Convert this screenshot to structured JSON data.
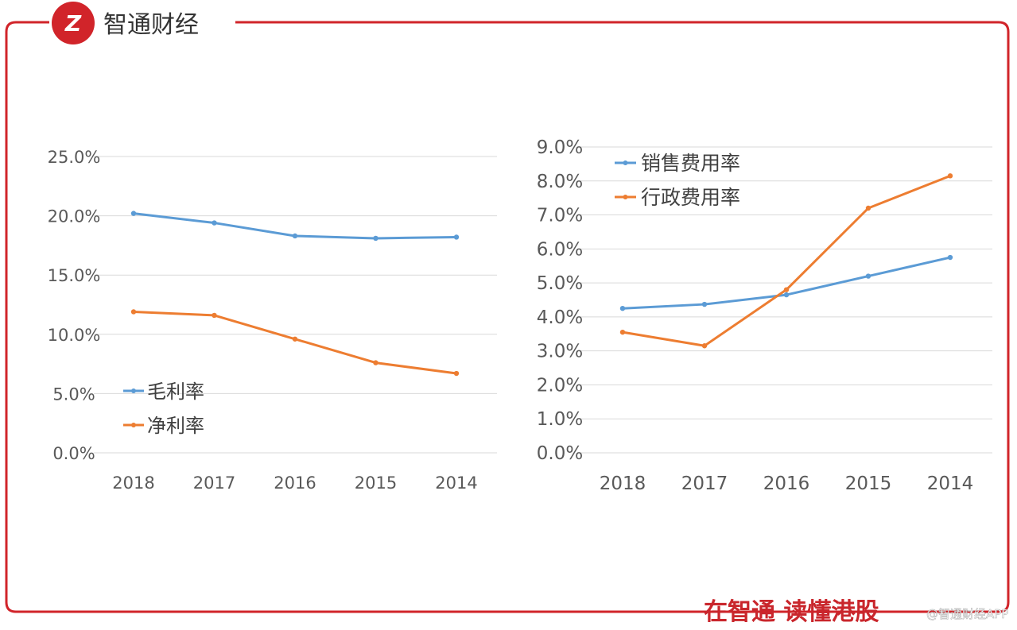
{
  "brand": {
    "name": "智通财经",
    "slogan": "在智通 读懂港股",
    "watermark": "@智通财经APP",
    "accent": "#d1242a"
  },
  "chart_data": [
    {
      "type": "line",
      "categories": [
        "2018",
        "2017",
        "2016",
        "2015",
        "2014"
      ],
      "ylim": [
        0,
        25
      ],
      "yticks": [
        "0.0%",
        "5.0%",
        "10.0%",
        "15.0%",
        "20.0%",
        "25.0%"
      ],
      "series": [
        {
          "name": "毛利率",
          "values": [
            20.2,
            19.4,
            18.3,
            18.1,
            18.2
          ],
          "color": "#5b9bd5"
        },
        {
          "name": "净利率",
          "values": [
            11.9,
            11.6,
            9.6,
            7.6,
            6.7
          ],
          "color": "#ed7d31"
        }
      ],
      "legend": "bottom-left",
      "grid": true
    },
    {
      "type": "line",
      "categories": [
        "2018",
        "2017",
        "2016",
        "2015",
        "2014"
      ],
      "ylim": [
        0,
        9
      ],
      "yticks": [
        "0.0%",
        "1.0%",
        "2.0%",
        "3.0%",
        "4.0%",
        "5.0%",
        "6.0%",
        "7.0%",
        "8.0%",
        "9.0%"
      ],
      "series": [
        {
          "name": "销售费用率",
          "values": [
            4.25,
            4.37,
            4.65,
            5.2,
            5.75
          ],
          "color": "#5b9bd5"
        },
        {
          "name": "行政费用率",
          "values": [
            3.55,
            3.15,
            4.8,
            7.2,
            8.15
          ],
          "color": "#ed7d31"
        }
      ],
      "legend": "top-left",
      "grid": true
    }
  ]
}
